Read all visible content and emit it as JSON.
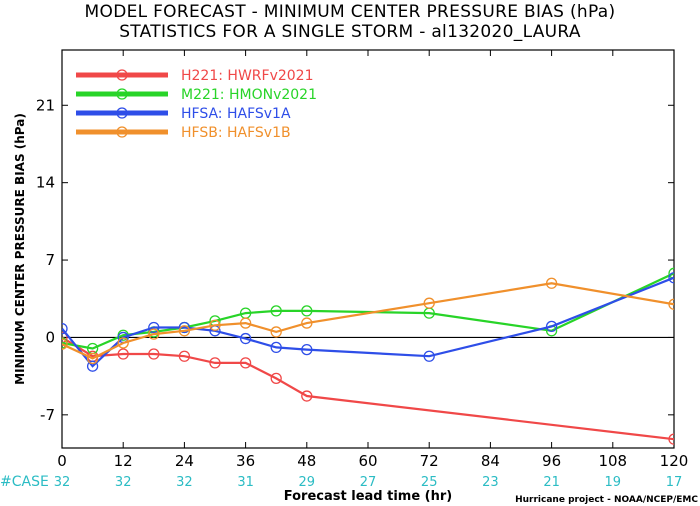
{
  "chart_data": {
    "type": "line",
    "title": "MODEL FORECAST - MINIMUM CENTER PRESSURE BIAS (hPa)",
    "subtitle": "STATISTICS FOR A SINGLE STORM - al132020_LAURA",
    "xlabel": "Forecast lead time (hr)",
    "ylabel": "MINIMUM CENTER PRESSURE BIAS (hPa)",
    "xlim": [
      0,
      120
    ],
    "ylim": [
      -10,
      26
    ],
    "xticks": [
      0,
      12,
      24,
      36,
      48,
      60,
      72,
      84,
      96,
      108,
      120
    ],
    "yticks": [
      -7,
      0,
      7,
      14,
      21
    ],
    "zero_line": true,
    "legend_position": "top-left",
    "case_label": "#CASE",
    "cases": [
      {
        "x": 0,
        "n": "32"
      },
      {
        "x": 12,
        "n": "32"
      },
      {
        "x": 24,
        "n": "32"
      },
      {
        "x": 36,
        "n": "31"
      },
      {
        "x": 48,
        "n": "29"
      },
      {
        "x": 60,
        "n": "27"
      },
      {
        "x": 72,
        "n": "25"
      },
      {
        "x": 84,
        "n": "23"
      },
      {
        "x": 96,
        "n": "21"
      },
      {
        "x": 108,
        "n": "19"
      },
      {
        "x": 120,
        "n": "17"
      }
    ],
    "series": [
      {
        "name": "H221: HWRFv2021",
        "color": "#f04848",
        "x": [
          0,
          6,
          12,
          18,
          24,
          30,
          36,
          42,
          48,
          120
        ],
        "y": [
          0.0,
          -1.7,
          -1.5,
          -1.5,
          -1.7,
          -2.3,
          -2.3,
          -3.7,
          -5.3,
          -9.2
        ]
      },
      {
        "name": "M221: HMONv2021",
        "color": "#28d428",
        "x": [
          0,
          6,
          12,
          18,
          24,
          30,
          36,
          42,
          48,
          72,
          96,
          120
        ],
        "y": [
          -0.5,
          -1.0,
          0.2,
          0.5,
          0.9,
          1.5,
          2.2,
          2.4,
          2.4,
          2.2,
          0.6,
          5.8
        ]
      },
      {
        "name": "HFSA: HAFSv1A",
        "color": "#2e4ee8",
        "x": [
          0,
          6,
          12,
          18,
          24,
          30,
          36,
          42,
          48,
          72,
          96,
          120
        ],
        "y": [
          0.8,
          -2.6,
          0.0,
          0.9,
          0.9,
          0.6,
          -0.1,
          -0.9,
          -1.1,
          -1.7,
          1.0,
          5.4
        ]
      },
      {
        "name": "HFSB: HAFSv1B",
        "color": "#f0902c",
        "x": [
          0,
          6,
          12,
          18,
          24,
          30,
          36,
          42,
          48,
          72,
          96,
          120
        ],
        "y": [
          -0.6,
          -1.9,
          -0.5,
          0.3,
          0.6,
          1.1,
          1.3,
          0.5,
          1.3,
          3.1,
          4.9,
          3.0
        ]
      }
    ],
    "credit": "Hurricane project - NOAA/NCEP/EMC"
  }
}
